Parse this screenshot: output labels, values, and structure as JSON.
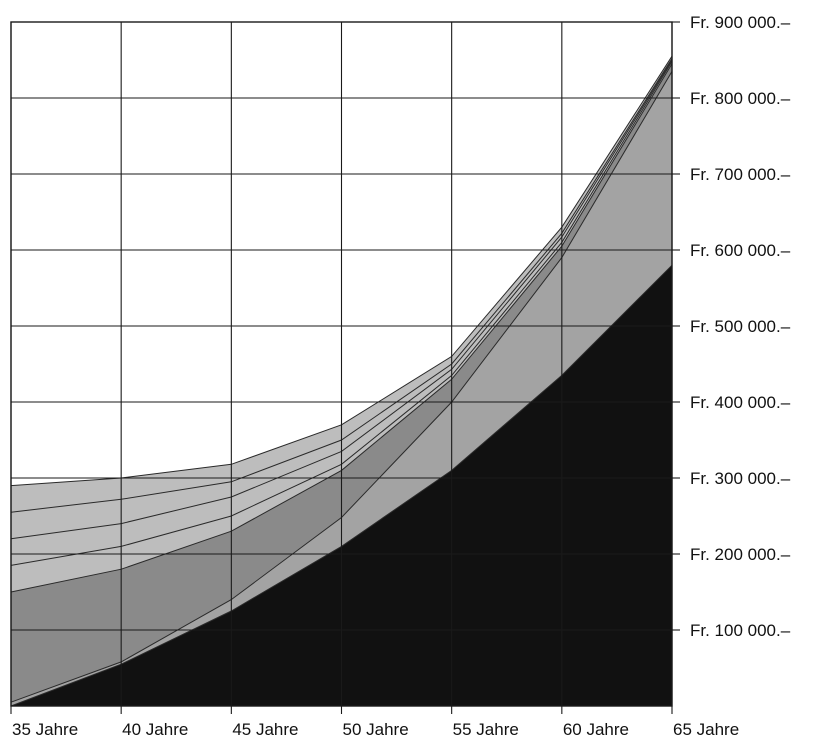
{
  "chart_data": {
    "type": "area",
    "title": "",
    "xlabel": "",
    "ylabel": "",
    "x": [
      35,
      40,
      45,
      50,
      55,
      60,
      65
    ],
    "x_tick_labels": [
      "35 Jahre",
      "40 Jahre",
      "45 Jahre",
      "50 Jahre",
      "55 Jahre",
      "60 Jahre",
      "65 Jahre"
    ],
    "y_ticks": [
      100000,
      200000,
      300000,
      400000,
      500000,
      600000,
      700000,
      800000,
      900000
    ],
    "y_tick_labels": [
      "Fr. 100 000.–",
      "Fr. 200 000.–",
      "Fr. 300 000.–",
      "Fr. 400 000.–",
      "Fr. 500 000.–",
      "Fr. 600 000.–",
      "Fr. 700 000.–",
      "Fr. 800 000.–",
      "Fr. 900 000.–"
    ],
    "ylim": [
      0,
      900000
    ],
    "xlim": [
      35,
      65
    ],
    "grid": true,
    "y_axis_side": "right",
    "stacked_cumulative": true,
    "series": [
      {
        "values": [
          0,
          55000,
          125000,
          210000,
          310000,
          435000,
          580000
        ],
        "color": "#111111"
      },
      {
        "values": [
          5000,
          58000,
          140000,
          248000,
          400000,
          590000,
          835000
        ],
        "color": "#a3a3a3"
      },
      {
        "values": [
          150000,
          180000,
          230000,
          310000,
          430000,
          605000,
          845000
        ],
        "color": "#8a8a8a"
      },
      {
        "values": [
          185000,
          210000,
          250000,
          318000,
          435000,
          610000,
          848000
        ],
        "color": "#bdbdbd"
      },
      {
        "values": [
          220000,
          240000,
          275000,
          335000,
          443000,
          617000,
          850000
        ],
        "color": "#bdbdbd"
      },
      {
        "values": [
          255000,
          272000,
          295000,
          350000,
          450000,
          622000,
          852000
        ],
        "color": "#bdbdbd"
      },
      {
        "values": [
          290000,
          300000,
          318000,
          370000,
          460000,
          630000,
          855000
        ],
        "color": "#bdbdbd"
      }
    ]
  }
}
